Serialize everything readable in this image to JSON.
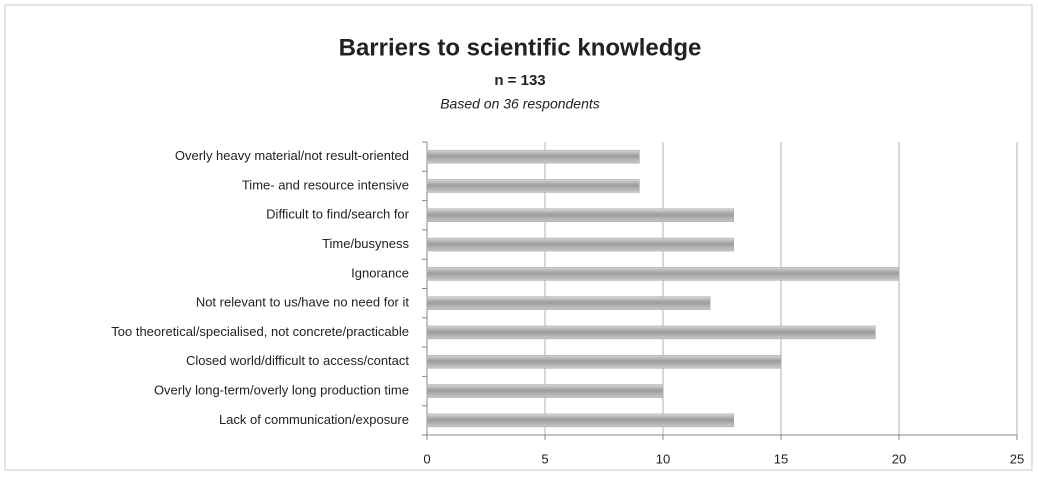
{
  "chart_data": {
    "type": "barh",
    "title": "Barriers to scientific knowledge",
    "subtitle": "n = 133",
    "note": "Based on 36 respondents",
    "categories": [
      "Overly heavy material/not result-oriented",
      "Time- and resource intensive",
      "Difficult to find/search for",
      "Time/busyness",
      "Ignorance",
      "Not relevant to us/have no need for it",
      "Too theoretical/specialised, not concrete/practicable",
      "Closed world/difficult to access/contact",
      "Overly long-term/overly long production time",
      "Lack of communication/exposure"
    ],
    "values": [
      9,
      9,
      13,
      13,
      20,
      12,
      19,
      15,
      10,
      13
    ],
    "color": "#a6a6a6",
    "xlim": [
      0,
      25
    ],
    "xticks": [
      0,
      5,
      10,
      15,
      20,
      25
    ],
    "grid": true
  }
}
